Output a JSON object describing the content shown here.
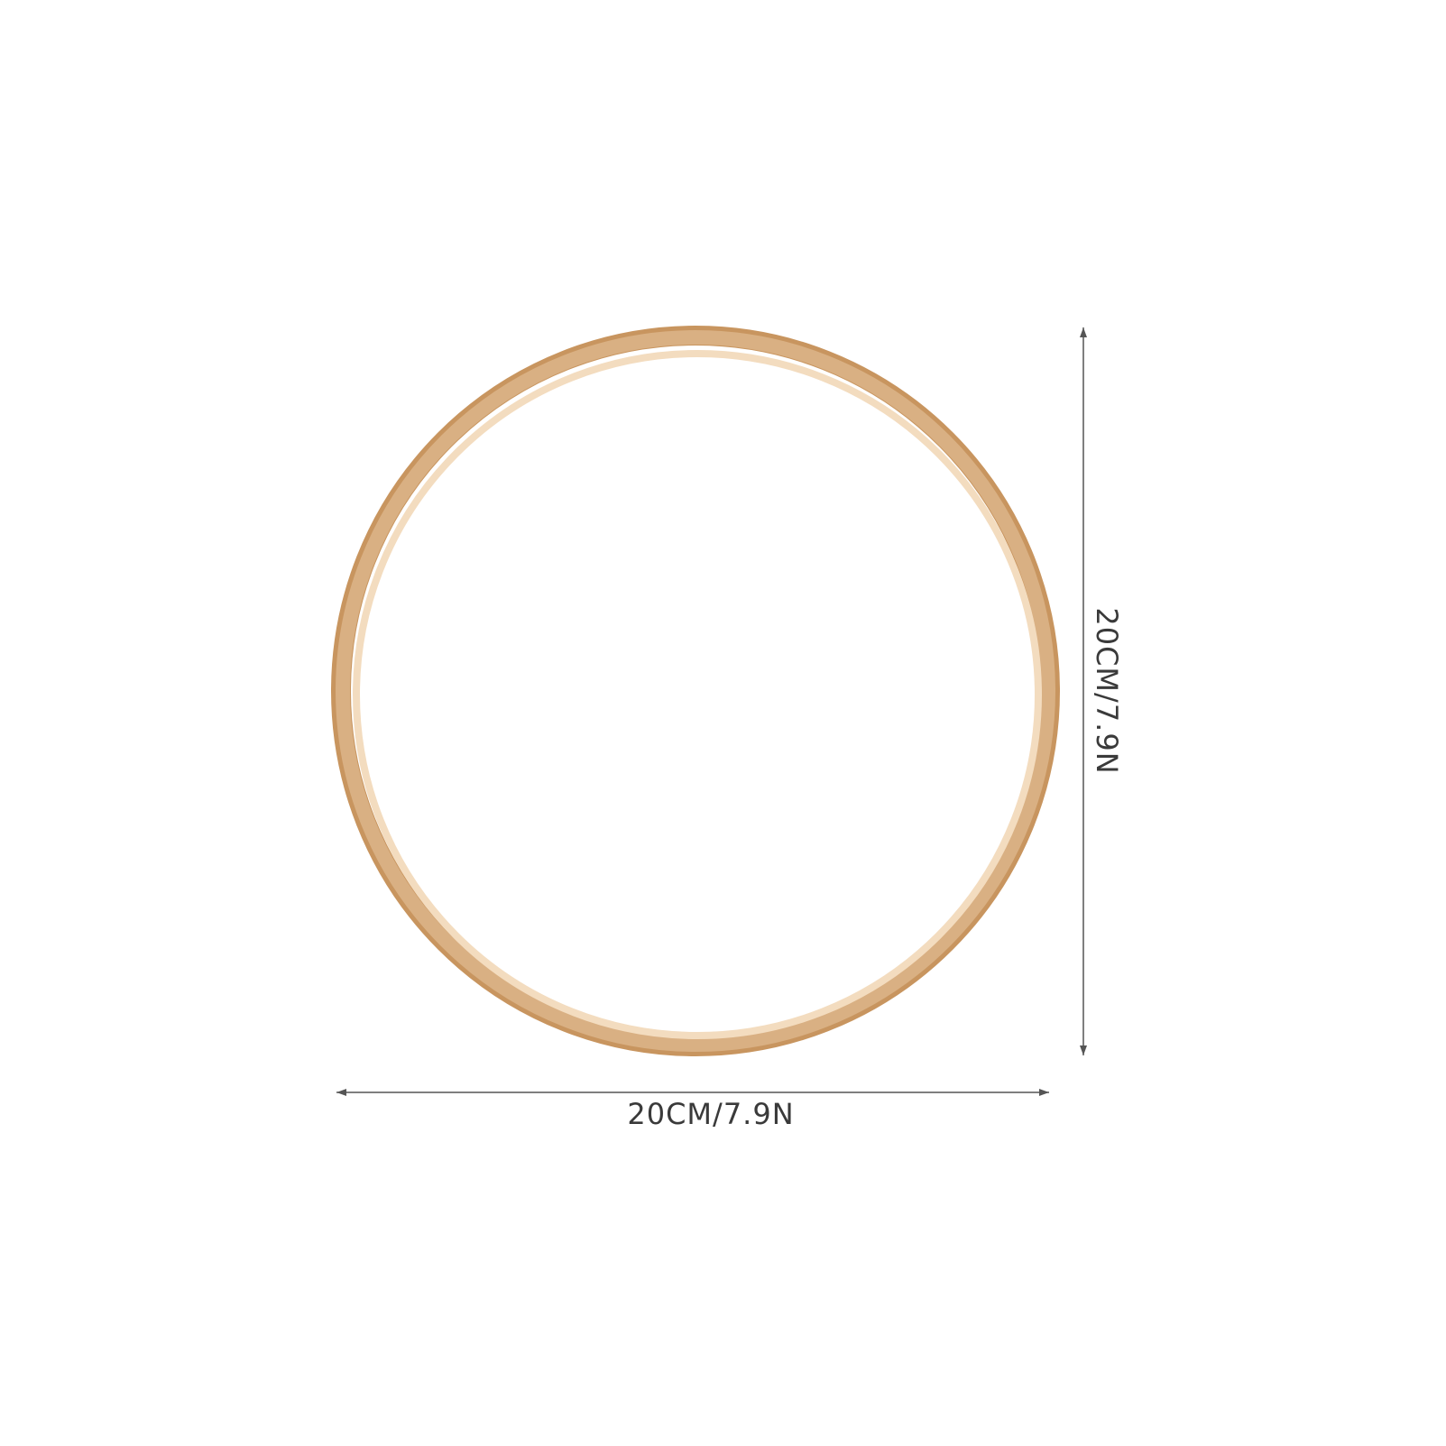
{
  "product": {
    "name": "wooden-ring",
    "colors": {
      "wood_outer": "#d9b083",
      "wood_inner": "#f3dcbf",
      "wood_edge": "#c8955f",
      "dimension_line": "#555555",
      "dimension_text": "#3a3a3a"
    }
  },
  "dimensions": {
    "width_label": "20CM/7.9N",
    "height_label": "20CM/7.9N"
  }
}
